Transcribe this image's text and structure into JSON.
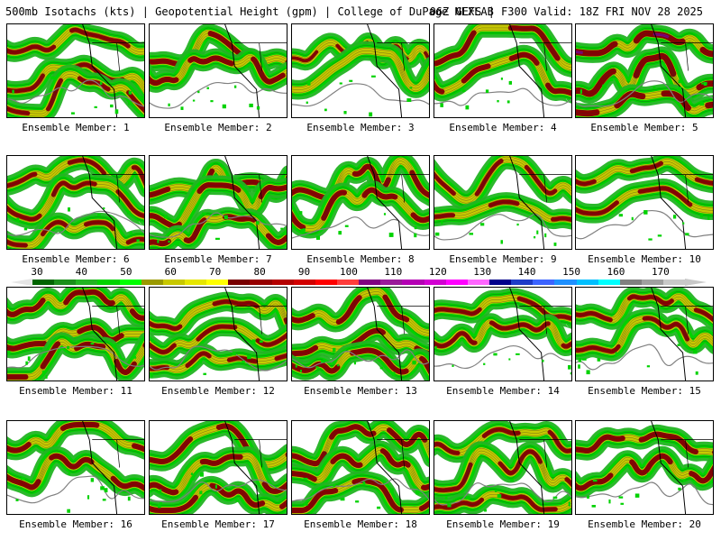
{
  "header": {
    "left": "500mb Isotachs (kts) | Geopotential Height (gpm) | College of DuPage NEXLAB",
    "right": "06Z GEFS | F300 Valid: 18Z FRI NOV 28 2025"
  },
  "legend": {
    "title": "500mb Isotachs (kts)",
    "ticks": [
      "30",
      "40",
      "50",
      "60",
      "70",
      "80",
      "90",
      "100",
      "110",
      "120",
      "130",
      "140",
      "150",
      "160",
      "170"
    ],
    "colors": [
      "#006400",
      "#1a8f1a",
      "#22b422",
      "#00d200",
      "#00ff00",
      "#9a9a00",
      "#c8c800",
      "#e6e600",
      "#ffff00",
      "#780000",
      "#960000",
      "#b40000",
      "#d20000",
      "#ff0000",
      "#ff3c3c",
      "#800080",
      "#9a1a9a",
      "#b400b4",
      "#d200d2",
      "#ff00ff",
      "#ff66ff",
      "#00008b",
      "#1e3cc8",
      "#3c64ff",
      "#1e90ff",
      "#00bfff",
      "#00ffff",
      "#808080",
      "#a0a0a0",
      "#c8c8c8"
    ]
  },
  "panels": [
    {
      "label": "Ensemble Member: 1",
      "intensity": 2
    },
    {
      "label": "Ensemble Member: 2",
      "intensity": 3
    },
    {
      "label": "Ensemble Member: 3",
      "intensity": 1
    },
    {
      "label": "Ensemble Member: 4",
      "intensity": 3
    },
    {
      "label": "Ensemble Member: 5",
      "intensity": 4
    },
    {
      "label": "Ensemble Member: 6",
      "intensity": 2
    },
    {
      "label": "Ensemble Member: 7",
      "intensity": 3
    },
    {
      "label": "Ensemble Member: 8",
      "intensity": 3
    },
    {
      "label": "Ensemble Member: 9",
      "intensity": 2
    },
    {
      "label": "Ensemble Member: 10",
      "intensity": 2
    },
    {
      "label": "Ensemble Member: 11",
      "intensity": 3
    },
    {
      "label": "Ensemble Member: 12",
      "intensity": 2
    },
    {
      "label": "Ensemble Member: 13",
      "intensity": 3
    },
    {
      "label": "Ensemble Member: 14",
      "intensity": 2
    },
    {
      "label": "Ensemble Member: 15",
      "intensity": 2
    },
    {
      "label": "Ensemble Member: 16",
      "intensity": 3
    },
    {
      "label": "Ensemble Member: 17",
      "intensity": 3
    },
    {
      "label": "Ensemble Member: 18",
      "intensity": 3
    },
    {
      "label": "Ensemble Member: 19",
      "intensity": 2
    },
    {
      "label": "Ensemble Member: 20",
      "intensity": 3
    }
  ]
}
